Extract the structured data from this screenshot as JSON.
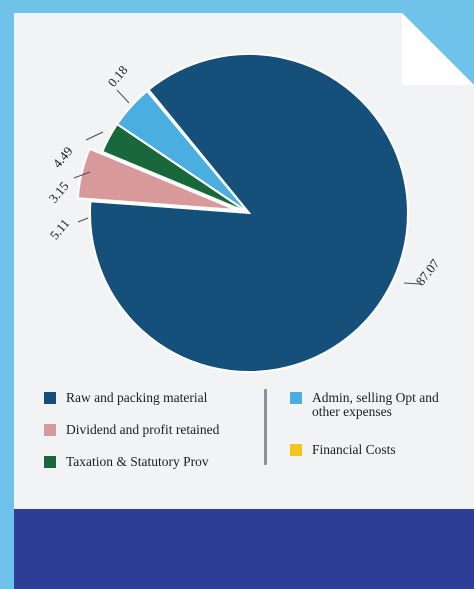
{
  "colors": {
    "background": "#6fc3ea",
    "card": "#f2f3f5",
    "footer": "#2e3d96"
  },
  "chart_data": {
    "type": "pie",
    "labels": [
      "Raw and packing material",
      "Dividend and profit retained",
      "Taxation & Statutory Prov",
      "Admin, selling Opt and other expenses",
      "Financial Costs"
    ],
    "values": [
      87.07,
      5.11,
      3.15,
      4.49,
      0.18
    ],
    "value_labels": [
      "87.07",
      "5.11",
      "3.15",
      "4.49",
      "0.18"
    ],
    "colors": [
      "#14507a",
      "#d8999b",
      "#19683b",
      "#4aaee0",
      "#f5c51c"
    ],
    "exploded_slice": "Dividend and profit retained",
    "legend_position": "bottom"
  },
  "legend": {
    "raw": "Raw and packing material",
    "dividend": "Dividend and profit retained",
    "taxation": "Taxation & Statutory Prov",
    "admin_line1": "Admin, selling Opt and",
    "admin_line2": "other expenses",
    "financial": "Financial Costs"
  }
}
